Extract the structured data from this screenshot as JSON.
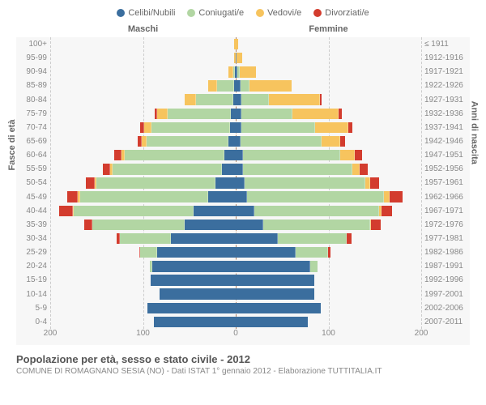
{
  "legend": [
    {
      "label": "Celibi/Nubili",
      "color": "#3b6e9e"
    },
    {
      "label": "Coniugati/e",
      "color": "#b2d6a3"
    },
    {
      "label": "Vedovi/e",
      "color": "#f7c45e"
    },
    {
      "label": "Divorziati/e",
      "color": "#d33c2e"
    }
  ],
  "headers": {
    "male": "Maschi",
    "female": "Femmine"
  },
  "y_left_title": "Fasce di età",
  "y_right_title": "Anni di nascita",
  "x_max": 200,
  "x_ticks": [
    200,
    100,
    0,
    100,
    200
  ],
  "x_tick_labels": [
    "200",
    "100",
    "0",
    "100",
    "200"
  ],
  "colors": {
    "single": "#3b6e9e",
    "married": "#b2d6a3",
    "widowed": "#f7c45e",
    "divorced": "#d33c2e",
    "grid": "#cccccc",
    "center": "#b08060",
    "bg": "#f7f7f7"
  },
  "rows": [
    {
      "age": "100+",
      "birth": "≤ 1911",
      "m": {
        "s": 0,
        "m": 0,
        "w": 2,
        "d": 0
      },
      "f": {
        "s": 0,
        "m": 0,
        "w": 3,
        "d": 0
      }
    },
    {
      "age": "95-99",
      "birth": "1912-1916",
      "m": {
        "s": 0,
        "m": 0,
        "w": 2,
        "d": 0
      },
      "f": {
        "s": 1,
        "m": 0,
        "w": 6,
        "d": 0
      }
    },
    {
      "age": "90-94",
      "birth": "1917-1921",
      "m": {
        "s": 1,
        "m": 2,
        "w": 5,
        "d": 0
      },
      "f": {
        "s": 2,
        "m": 2,
        "w": 18,
        "d": 0
      }
    },
    {
      "age": "85-89",
      "birth": "1922-1926",
      "m": {
        "s": 2,
        "m": 18,
        "w": 10,
        "d": 0
      },
      "f": {
        "s": 5,
        "m": 10,
        "w": 45,
        "d": 0
      }
    },
    {
      "age": "80-84",
      "birth": "1927-1931",
      "m": {
        "s": 3,
        "m": 40,
        "w": 12,
        "d": 0
      },
      "f": {
        "s": 6,
        "m": 30,
        "w": 55,
        "d": 2
      }
    },
    {
      "age": "75-79",
      "birth": "1932-1936",
      "m": {
        "s": 5,
        "m": 68,
        "w": 12,
        "d": 2
      },
      "f": {
        "s": 6,
        "m": 55,
        "w": 50,
        "d": 3
      }
    },
    {
      "age": "70-74",
      "birth": "1937-1941",
      "m": {
        "s": 6,
        "m": 85,
        "w": 8,
        "d": 4
      },
      "f": {
        "s": 6,
        "m": 80,
        "w": 35,
        "d": 5
      }
    },
    {
      "age": "65-69",
      "birth": "1942-1946",
      "m": {
        "s": 8,
        "m": 88,
        "w": 5,
        "d": 5
      },
      "f": {
        "s": 5,
        "m": 88,
        "w": 20,
        "d": 5
      }
    },
    {
      "age": "60-64",
      "birth": "1947-1951",
      "m": {
        "s": 12,
        "m": 108,
        "w": 3,
        "d": 8
      },
      "f": {
        "s": 8,
        "m": 105,
        "w": 15,
        "d": 8
      }
    },
    {
      "age": "55-59",
      "birth": "1952-1956",
      "m": {
        "s": 15,
        "m": 118,
        "w": 2,
        "d": 8
      },
      "f": {
        "s": 8,
        "m": 118,
        "w": 8,
        "d": 8
      }
    },
    {
      "age": "50-54",
      "birth": "1957-1961",
      "m": {
        "s": 22,
        "m": 128,
        "w": 2,
        "d": 10
      },
      "f": {
        "s": 10,
        "m": 130,
        "w": 5,
        "d": 10
      }
    },
    {
      "age": "45-49",
      "birth": "1962-1966",
      "m": {
        "s": 30,
        "m": 138,
        "w": 2,
        "d": 12
      },
      "f": {
        "s": 12,
        "m": 148,
        "w": 6,
        "d": 14
      }
    },
    {
      "age": "40-44",
      "birth": "1967-1971",
      "m": {
        "s": 45,
        "m": 130,
        "w": 1,
        "d": 14
      },
      "f": {
        "s": 20,
        "m": 135,
        "w": 2,
        "d": 12
      }
    },
    {
      "age": "35-39",
      "birth": "1972-1976",
      "m": {
        "s": 55,
        "m": 100,
        "w": 0,
        "d": 8
      },
      "f": {
        "s": 30,
        "m": 115,
        "w": 1,
        "d": 10
      }
    },
    {
      "age": "30-34",
      "birth": "1977-1981",
      "m": {
        "s": 70,
        "m": 55,
        "w": 0,
        "d": 3
      },
      "f": {
        "s": 45,
        "m": 75,
        "w": 0,
        "d": 5
      }
    },
    {
      "age": "25-29",
      "birth": "1982-1986",
      "m": {
        "s": 85,
        "m": 18,
        "w": 0,
        "d": 1
      },
      "f": {
        "s": 65,
        "m": 35,
        "w": 0,
        "d": 2
      }
    },
    {
      "age": "20-24",
      "birth": "1987-1991",
      "m": {
        "s": 90,
        "m": 3,
        "w": 0,
        "d": 0
      },
      "f": {
        "s": 80,
        "m": 8,
        "w": 0,
        "d": 0
      }
    },
    {
      "age": "15-19",
      "birth": "1992-1996",
      "m": {
        "s": 92,
        "m": 0,
        "w": 0,
        "d": 0
      },
      "f": {
        "s": 85,
        "m": 0,
        "w": 0,
        "d": 0
      }
    },
    {
      "age": "10-14",
      "birth": "1997-2001",
      "m": {
        "s": 82,
        "m": 0,
        "w": 0,
        "d": 0
      },
      "f": {
        "s": 85,
        "m": 0,
        "w": 0,
        "d": 0
      }
    },
    {
      "age": "5-9",
      "birth": "2002-2006",
      "m": {
        "s": 95,
        "m": 0,
        "w": 0,
        "d": 0
      },
      "f": {
        "s": 92,
        "m": 0,
        "w": 0,
        "d": 0
      }
    },
    {
      "age": "0-4",
      "birth": "2007-2011",
      "m": {
        "s": 88,
        "m": 0,
        "w": 0,
        "d": 0
      },
      "f": {
        "s": 78,
        "m": 0,
        "w": 0,
        "d": 0
      }
    }
  ],
  "title": "Popolazione per età, sesso e stato civile - 2012",
  "subtitle": "COMUNE DI ROMAGNANO SESIA (NO) - Dati ISTAT 1° gennaio 2012 - Elaborazione TUTTITALIA.IT"
}
